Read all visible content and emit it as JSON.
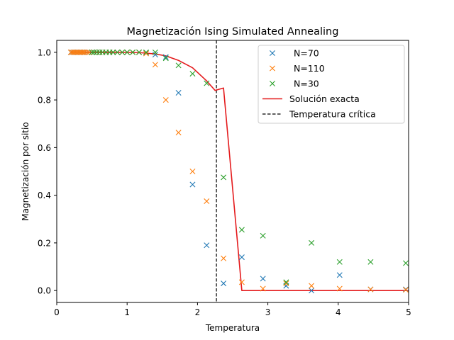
{
  "chart_data": {
    "type": "scatter",
    "title": "Magnetización Ising Simulated Annealing",
    "xlabel": "Temperatura",
    "ylabel": "Magnetización por sitio",
    "xlim": [
      0,
      5
    ],
    "ylim": [
      -0.05,
      1.05
    ],
    "xticks": [
      0,
      1,
      2,
      3,
      4,
      5
    ],
    "xtick_labels": [
      "0",
      "1",
      "2",
      "3",
      "4",
      "5"
    ],
    "yticks": [
      0.0,
      0.2,
      0.4,
      0.6,
      0.8,
      1.0
    ],
    "ytick_labels": [
      "0.0",
      "0.2",
      "0.4",
      "0.6",
      "0.8",
      "1.0"
    ],
    "grid": false,
    "legend_position": "top-right",
    "series": [
      {
        "name": "N=70",
        "marker": "x",
        "color": "#1f77b4",
        "x": [
          0.2,
          0.22,
          0.24,
          0.26,
          0.28,
          0.3,
          0.32,
          0.34,
          0.36,
          0.38,
          0.4,
          0.43,
          0.46,
          0.5,
          0.53,
          0.57,
          0.61,
          0.65,
          0.7,
          0.75,
          0.8,
          0.86,
          0.93,
          1.0,
          1.08,
          1.17,
          1.27,
          1.4,
          1.55,
          1.73,
          1.93,
          2.13,
          2.37,
          2.63,
          2.93,
          3.26,
          3.62,
          4.02,
          4.46,
          4.96
        ],
        "y": [
          1.0,
          1.0,
          1.0,
          1.0,
          1.0,
          1.0,
          1.0,
          1.0,
          1.0,
          1.0,
          1.0,
          1.0,
          1.0,
          1.0,
          1.0,
          1.0,
          1.0,
          1.0,
          1.0,
          1.0,
          1.0,
          1.0,
          1.0,
          1.0,
          1.0,
          1.0,
          0.998,
          0.99,
          0.98,
          0.83,
          0.445,
          0.19,
          0.03,
          0.14,
          0.05,
          0.02,
          0.0,
          0.065,
          0.005,
          0.005
        ]
      },
      {
        "name": "N=110",
        "marker": "x",
        "color": "#ff7f0e",
        "x": [
          0.2,
          0.22,
          0.24,
          0.26,
          0.28,
          0.3,
          0.32,
          0.34,
          0.36,
          0.38,
          0.4,
          0.43,
          0.46,
          0.5,
          0.53,
          0.57,
          0.61,
          0.65,
          0.7,
          0.75,
          0.8,
          0.86,
          0.93,
          1.0,
          1.08,
          1.17,
          1.27,
          1.4,
          1.55,
          1.73,
          1.93,
          2.13,
          2.37,
          2.63,
          2.93,
          3.26,
          3.62,
          4.02,
          4.46,
          4.96
        ],
        "y": [
          1.0,
          1.0,
          1.0,
          1.0,
          1.0,
          1.0,
          1.0,
          1.0,
          1.0,
          1.0,
          1.0,
          1.0,
          1.0,
          1.0,
          1.0,
          1.0,
          1.0,
          1.0,
          1.0,
          1.0,
          1.0,
          1.0,
          1.0,
          1.0,
          1.0,
          1.0,
          0.995,
          0.948,
          0.8,
          0.663,
          0.5,
          0.375,
          0.135,
          0.035,
          0.008,
          0.03,
          0.02,
          0.008,
          0.005,
          0.003
        ]
      },
      {
        "name": "N=30",
        "marker": "x",
        "color": "#2ca02c",
        "x": [
          0.5,
          0.53,
          0.57,
          0.61,
          0.65,
          0.7,
          0.75,
          0.8,
          0.86,
          0.93,
          1.0,
          1.08,
          1.17,
          1.27,
          1.4,
          1.55,
          1.73,
          1.93,
          2.13,
          2.37,
          2.63,
          2.93,
          3.26,
          3.62,
          4.02,
          4.46,
          4.96
        ],
        "y": [
          1.0,
          1.0,
          1.0,
          1.0,
          1.0,
          1.0,
          1.0,
          1.0,
          1.0,
          1.0,
          1.0,
          1.0,
          1.0,
          1.0,
          1.0,
          0.975,
          0.945,
          0.91,
          0.87,
          0.475,
          0.255,
          0.23,
          0.035,
          0.2,
          0.12,
          0.12,
          0.115
        ]
      }
    ],
    "lines": [
      {
        "name": "Solución exacta",
        "color": "#e41a1c",
        "style": "solid",
        "x": [
          0.2,
          0.4,
          0.6,
          0.8,
          1.0,
          1.2,
          1.4,
          1.55,
          1.73,
          1.93,
          2.13,
          2.25,
          2.37,
          2.63,
          3.0,
          3.5,
          4.0,
          4.5,
          5.0
        ],
        "y": [
          1.0,
          1.0,
          1.0,
          1.0,
          0.9995,
          0.998,
          0.993,
          0.985,
          0.966,
          0.935,
          0.88,
          0.84,
          0.85,
          0.0,
          0.0,
          0.0,
          0.0,
          0.0,
          0.0
        ]
      }
    ],
    "vlines": [
      {
        "name": "Temperatura crítica",
        "color": "#000000",
        "style": "dashed",
        "x": 2.269
      }
    ]
  }
}
